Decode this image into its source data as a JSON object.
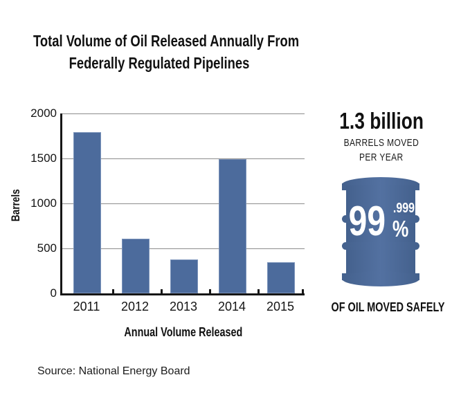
{
  "title": {
    "line1": "Total Volume of Oil Released Annually From",
    "line2": "Federally Regulated Pipelines"
  },
  "chart_data": {
    "type": "bar",
    "categories": [
      "2011",
      "2012",
      "2013",
      "2014",
      "2015"
    ],
    "values": [
      1790,
      605,
      375,
      1490,
      345
    ],
    "title": "Total Volume of Oil Released Annually From Federally Regulated Pipelines",
    "xlabel": "Annual Volume Released",
    "ylabel": "Barrels",
    "ylim": [
      0,
      2000
    ],
    "yticks": [
      0,
      500,
      1000,
      1500,
      2000
    ],
    "grid": true,
    "legend": false,
    "bar_color": "#4c6b9c",
    "gridline_color": "#8c8c8c",
    "axis_color": "#161616"
  },
  "stat_panel": {
    "headline": "1.3 billion",
    "subline1": "BARRELS MOVED",
    "subline2": "PER YEAR",
    "barrel_value_main": "99",
    "barrel_value_sup": ".999",
    "barrel_value_sign": "%",
    "caption": "OF OIL MOVED SAFELY",
    "barrel_color": "#4c6b9c"
  },
  "source": "Source: National Energy Board"
}
